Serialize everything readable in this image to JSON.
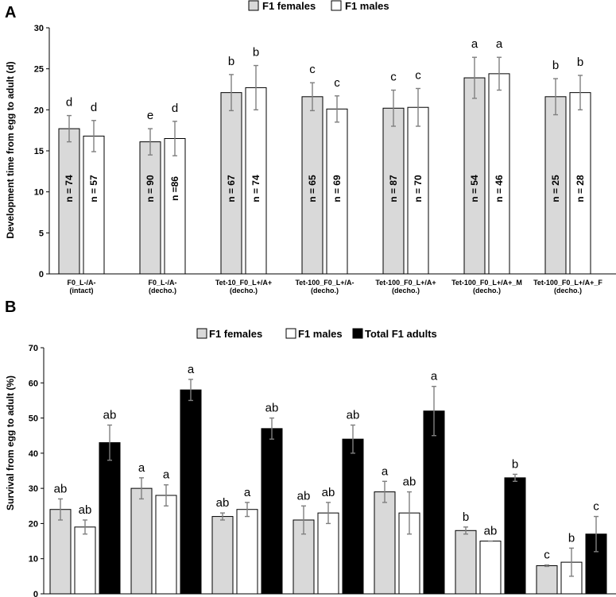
{
  "panels": [
    {
      "panel_label": "A",
      "ytick_labels": [
        "0",
        "5",
        "10",
        "15",
        "20",
        "25",
        "30"
      ],
      "xtick_labels": [
        [
          "F0_L-/A-",
          "(intact)"
        ],
        [
          "F0_L-/A-",
          "(decho.)"
        ],
        [
          "Tet-10_F0_L+/A+",
          "(decho.)"
        ],
        [
          "Tet-100_F0_L+/A-",
          "(decho.)"
        ],
        [
          "Tet-100_F0_L+/A+",
          "(decho.)"
        ],
        [
          "Tet-100_F0_L+/A+_M",
          "(decho.)"
        ],
        [
          "Tet-100_F0_L+/A+_F",
          "(decho.)"
        ]
      ]
    },
    {
      "panel_label": "B",
      "ytick_labels": [
        "0",
        "10",
        "20",
        "30",
        "40",
        "50",
        "60",
        "70"
      ],
      "xtick_labels": [
        [
          "F0_L-/A-",
          "(intact)"
        ],
        [
          "F0_L-/A-",
          "(decho.)"
        ],
        [
          "Tet-10_F0_L+/A+",
          "(decho.)"
        ],
        [
          "Tet-100_F0_L+/A-",
          "(decho.)"
        ],
        [
          "Tet-100_F0_L+/A+",
          "(decho.)"
        ],
        [
          "Tet-100_F0_L+/A+_M",
          "(decho.)"
        ],
        [
          "Tet-100_F0_L+/A+_F",
          "(decho.)"
        ]
      ]
    }
  ],
  "colors": {
    "females": "#d9d9d9",
    "males": "#ffffff",
    "total": "#000000",
    "error_bar": "#7f7f7f",
    "axis": "#000000"
  },
  "chart_data": [
    {
      "type": "bar",
      "ylabel": "Development time from egg to adult (d)",
      "ylim": [
        0,
        30
      ],
      "categories": [
        "F0_L-/A- (intact)",
        "F0_L-/A- (decho.)",
        "Tet-10_F0_L+/A+ (decho.)",
        "Tet-100_F0_L+/A- (decho.)",
        "Tet-100_F0_L+/A+ (decho.)",
        "Tet-100_F0_L+/A+_M (decho.)",
        "Tet-100_F0_L+/A+_F (decho.)"
      ],
      "legend": [
        "F1 females",
        "F1 males"
      ],
      "series": [
        {
          "name": "F1 females",
          "values": [
            17.7,
            16.1,
            22.1,
            21.6,
            20.2,
            23.9,
            21.6
          ],
          "errors": [
            1.6,
            1.6,
            2.2,
            1.7,
            2.2,
            2.5,
            2.2
          ],
          "letters": [
            "d",
            "e",
            "b",
            "c",
            "c",
            "a",
            "b"
          ],
          "n_labels": [
            "n = 74",
            "n = 90",
            "n = 67",
            "n = 65",
            "n = 87",
            "n = 54",
            "n = 25"
          ]
        },
        {
          "name": "F1 males",
          "values": [
            16.8,
            16.5,
            22.7,
            20.1,
            20.3,
            24.4,
            22.1
          ],
          "errors": [
            1.9,
            2.1,
            2.7,
            1.6,
            2.3,
            2.0,
            2.1
          ],
          "letters": [
            "d",
            "d",
            "b",
            "c",
            "c",
            "a",
            "b"
          ],
          "n_labels": [
            "n = 57",
            "n =86",
            "n = 74",
            "n = 69",
            "n = 70",
            "n = 46",
            "n = 28"
          ]
        }
      ]
    },
    {
      "type": "bar",
      "ylabel": "Survival from egg to adult (%)",
      "ylim": [
        0,
        70
      ],
      "categories": [
        "F0_L-/A- (intact)",
        "F0_L-/A- (decho.)",
        "Tet-10_F0_L+/A+ (decho.)",
        "Tet-100_F0_L+/A- (decho.)",
        "Tet-100_F0_L+/A+ (decho.)",
        "Tet-100_F0_L+/A+_M (decho.)",
        "Tet-100_F0_L+/A+_F (decho.)"
      ],
      "legend": [
        "F1 females",
        "F1 males",
        "Total F1 adults"
      ],
      "series": [
        {
          "name": "F1 females",
          "values": [
            24,
            30,
            22,
            21,
            29,
            18,
            8
          ],
          "errors": [
            3,
            3,
            1,
            4,
            3,
            1,
            0.2
          ],
          "letters": [
            "ab",
            "a",
            "ab",
            "ab",
            "a",
            "b",
            "c"
          ]
        },
        {
          "name": "F1 males",
          "values": [
            19,
            28,
            24,
            23,
            23,
            15,
            9
          ],
          "errors": [
            2,
            3,
            2,
            3,
            6,
            0,
            4
          ],
          "letters": [
            "ab",
            "a",
            "a",
            "ab",
            "ab",
            "ab",
            "b"
          ]
        },
        {
          "name": "Total F1 adults",
          "values": [
            43,
            58,
            47,
            44,
            52,
            33,
            17
          ],
          "errors": [
            5,
            3,
            3,
            4,
            7,
            1,
            5
          ],
          "letters": [
            "ab",
            "a",
            "ab",
            "ab",
            "a",
            "b",
            "c"
          ]
        }
      ]
    }
  ]
}
